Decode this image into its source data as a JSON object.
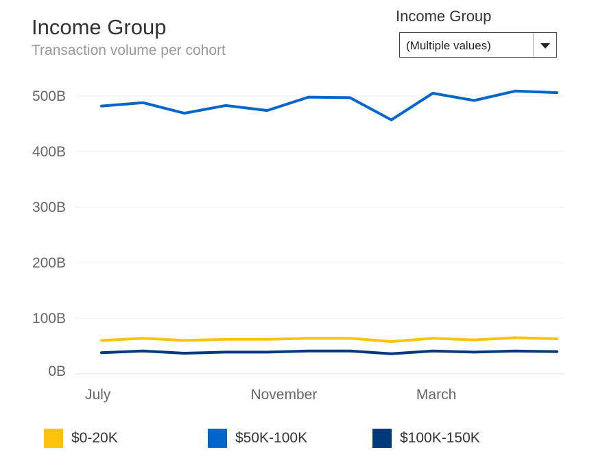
{
  "header": {
    "title": "Income Group",
    "subtitle": "Transaction volume per cohort"
  },
  "filter": {
    "label": "Income Group",
    "selected": "(Multiple values)"
  },
  "chart_data": {
    "type": "line",
    "title": "Income Group",
    "subtitle": "Transaction volume per cohort",
    "xlabel": "",
    "ylabel": "",
    "x_tick_labels": [
      "July",
      "November",
      "March"
    ],
    "y_tick_labels": [
      "0B",
      "100B",
      "200B",
      "300B",
      "400B",
      "500B"
    ],
    "y_ticks": [
      0,
      100,
      200,
      300,
      400,
      500
    ],
    "ylim": [
      0,
      520
    ],
    "grid": "horizontal",
    "legend_position": "bottom",
    "num_points": 12,
    "x_tick_indices": [
      0,
      4,
      8
    ],
    "series": [
      {
        "name": "$0-20K",
        "color": "#FFC20E",
        "values": [
          60,
          64,
          60,
          62,
          62,
          64,
          64,
          58,
          64,
          61,
          65,
          63
        ]
      },
      {
        "name": "$50K-100K",
        "color": "#0066CC",
        "values": [
          482,
          488,
          469,
          483,
          474,
          498,
          497,
          457,
          505,
          492,
          509,
          506
        ]
      },
      {
        "name": "$100K-150K",
        "color": "#003A7D",
        "values": [
          38,
          41,
          37,
          39,
          39,
          41,
          41,
          36,
          41,
          39,
          41,
          40
        ]
      }
    ]
  }
}
